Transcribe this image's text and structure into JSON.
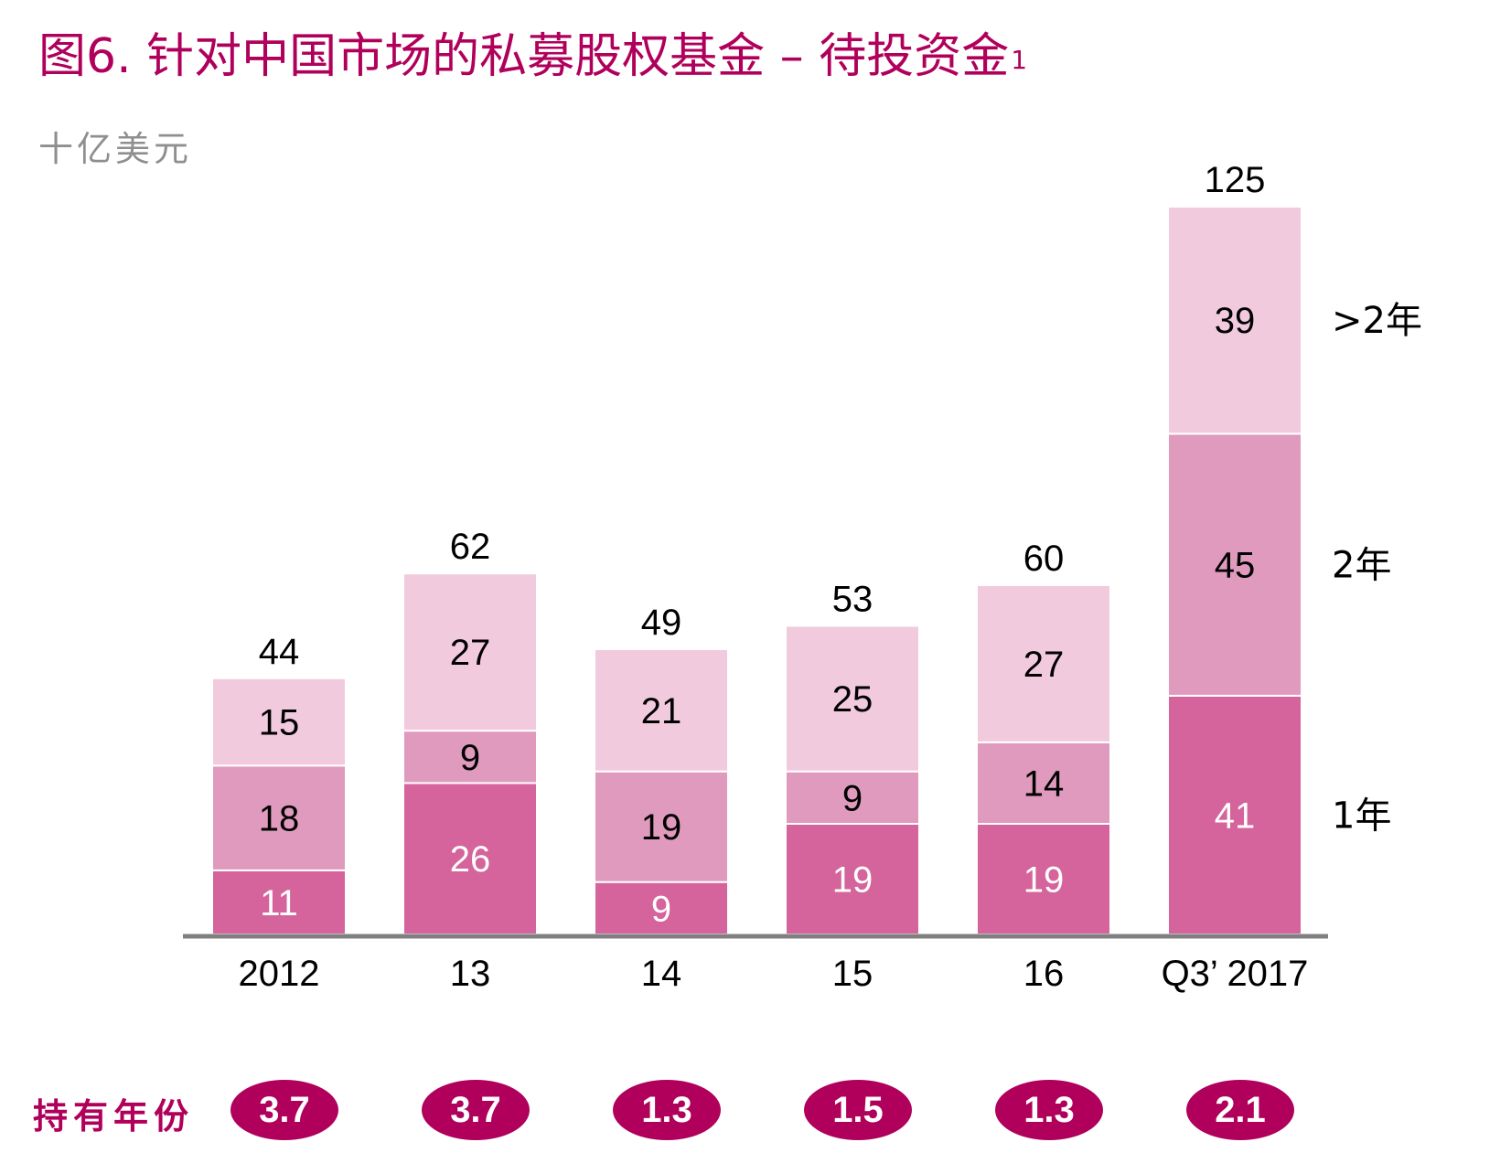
{
  "title": "图6. 针对中国市场的私募股权基金 – 待投资金",
  "title_sup": "1",
  "unit_label": "十亿美元",
  "colors": {
    "accent": "#b0005b",
    "one_year": "#d4649b",
    "two_year": "#e09abe",
    "over_two_year": "#f2cade",
    "axis": "#808080",
    "text": "#000000",
    "inner_dark_text": "#ffffff"
  },
  "chart_data": {
    "type": "bar",
    "stacked": true,
    "categories": [
      "2012",
      "13",
      "14",
      "15",
      "16",
      "Q3’ 2017"
    ],
    "series": [
      {
        "name": "1年",
        "values": [
          11,
          26,
          9,
          19,
          19,
          41
        ]
      },
      {
        "name": "2年",
        "values": [
          18,
          9,
          19,
          9,
          14,
          45
        ]
      },
      {
        "name": ">2年",
        "values": [
          15,
          27,
          21,
          25,
          27,
          39
        ]
      }
    ],
    "totals": [
      44,
      62,
      49,
      53,
      60,
      125
    ],
    "ylim": [
      0,
      125
    ],
    "grid": false,
    "legend": "right"
  },
  "holding_period": {
    "label": "持有年份",
    "values": [
      "3.7",
      "3.7",
      "1.3",
      "1.5",
      "1.3",
      "2.1"
    ]
  }
}
